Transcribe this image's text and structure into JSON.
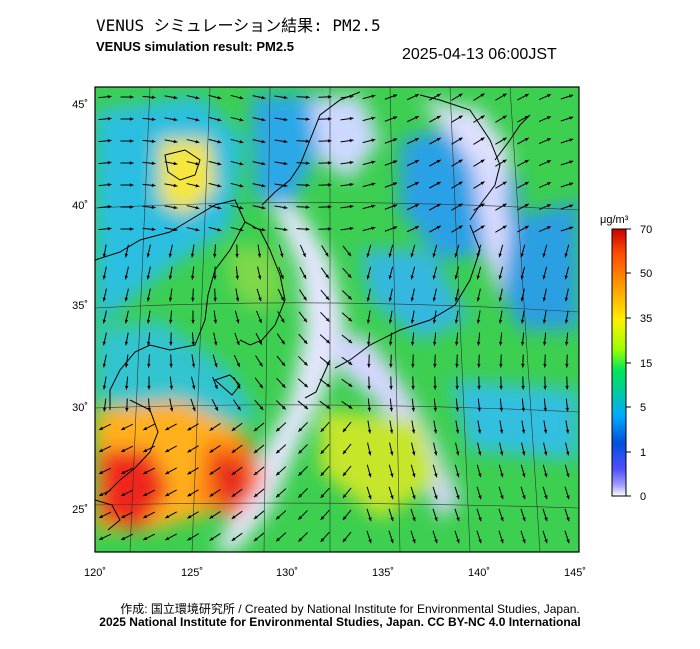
{
  "header": {
    "title_ja": "VENUS シミュレーション結果: PM2.5",
    "title_en": "VENUS simulation result: PM2.5",
    "timestamp": "2025-04-13 06:00JST"
  },
  "map": {
    "lon_ticks": [
      "120˚",
      "125˚",
      "130˚",
      "135˚",
      "140˚",
      "145˚"
    ],
    "lat_ticks": [
      "45˚",
      "40˚",
      "35˚",
      "30˚",
      "25˚"
    ],
    "colors": {
      "ocean_low": "#29a3e6",
      "moderate": "#3ccf50",
      "high": "#ffd21e",
      "very_high": "#e6281e",
      "clean": "#f0f0ff"
    }
  },
  "colorbar": {
    "unit": "μg/m³",
    "labels": [
      "70",
      "50",
      "35",
      "15",
      "5",
      "1",
      "0"
    ],
    "colors": [
      "#c80000",
      "#ff4b00",
      "#ffa000",
      "#fff000",
      "#9bff00",
      "#00e65a",
      "#00c8aa",
      "#00aaff",
      "#0050dc",
      "#5050ff",
      "#a0a0ff",
      "#ffffff"
    ]
  },
  "footer": {
    "credit_ja": "作成: 国立環境研究所 / Created by National Institute for Environmental Studies, Japan.",
    "copyright": "2025 National Institute for Environmental Studies, Japan. CC BY-NC 4.0 International"
  }
}
